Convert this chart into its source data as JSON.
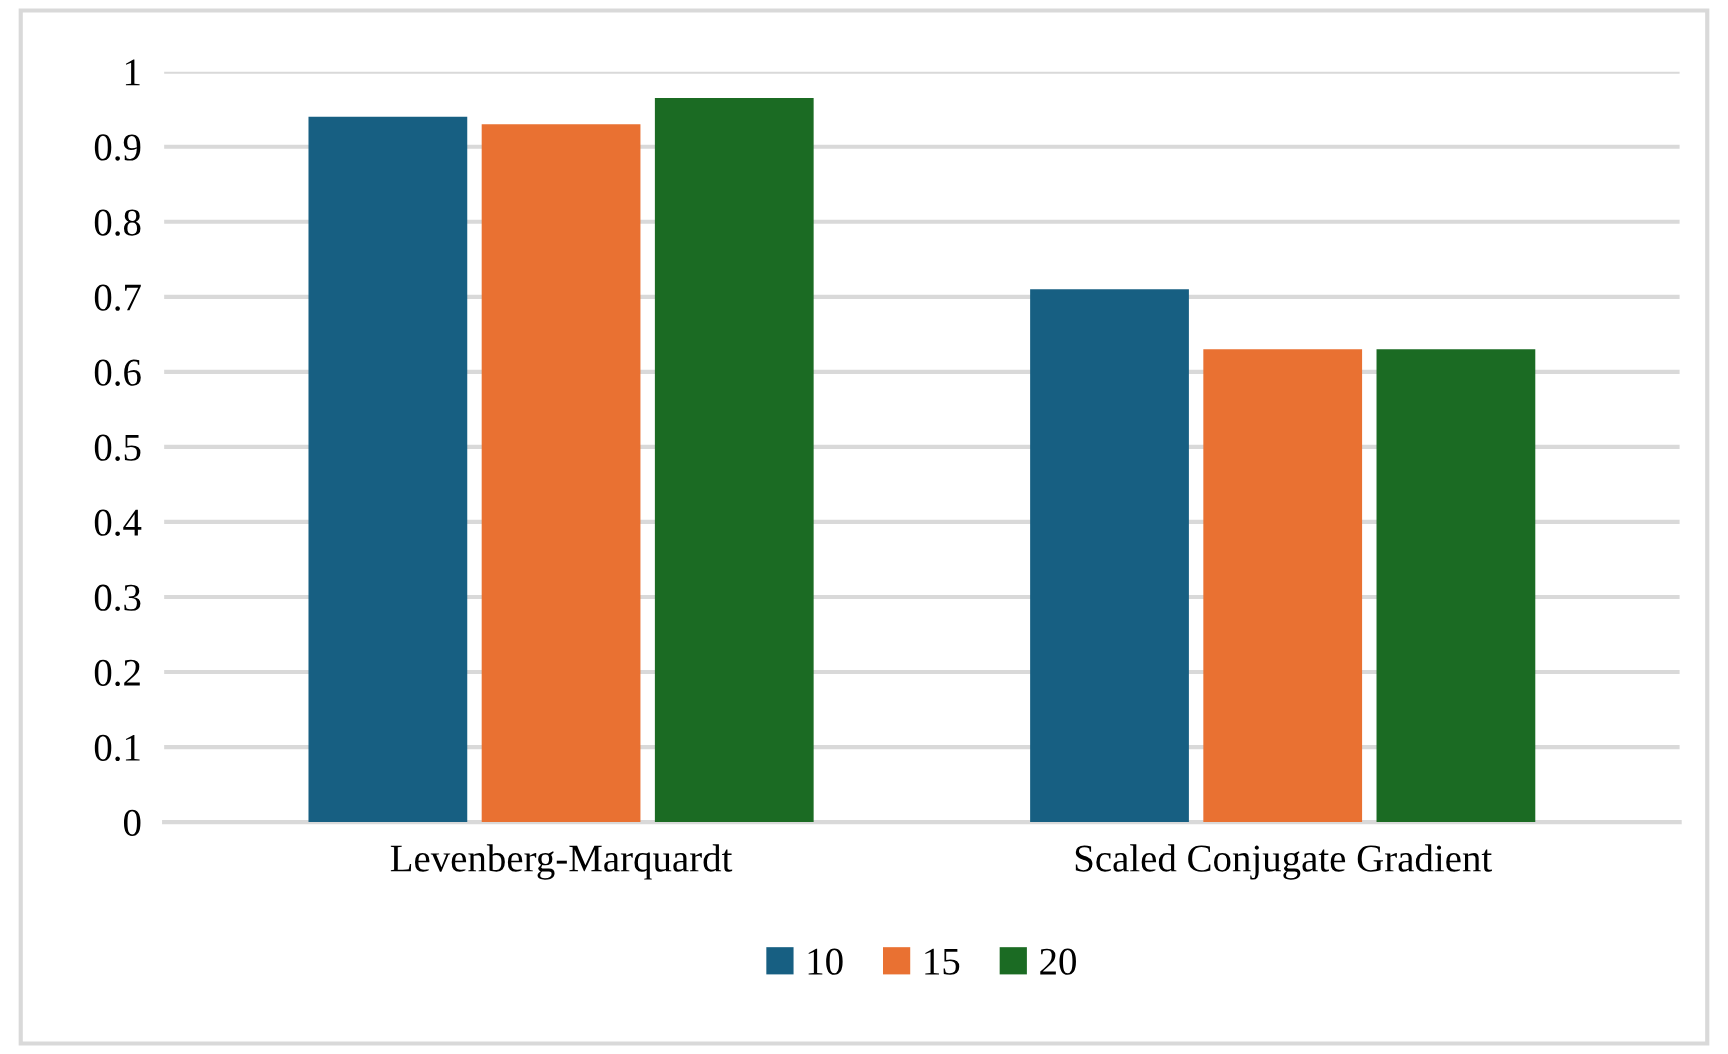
{
  "chart_data": {
    "type": "bar",
    "categories": [
      "Levenberg-Marquardt",
      "Scaled Conjugate Gradient"
    ],
    "series": [
      {
        "name": "10",
        "color": "#175f82",
        "values": [
          0.94,
          0.71
        ]
      },
      {
        "name": "15",
        "color": "#e97132",
        "values": [
          0.93,
          0.63
        ]
      },
      {
        "name": "20",
        "color": "#1b6b23",
        "values": [
          0.965,
          0.63
        ]
      }
    ],
    "ylim": [
      0,
      1
    ],
    "yticks": [
      0,
      0.1,
      0.2,
      0.3,
      0.4,
      0.5,
      0.6,
      0.7,
      0.8,
      0.9,
      1
    ],
    "grid": "y",
    "legend": "bottom"
  }
}
